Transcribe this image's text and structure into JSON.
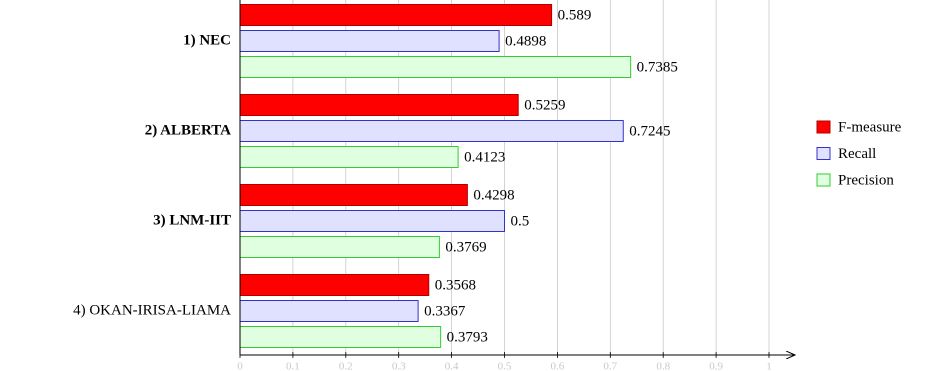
{
  "chart_data": {
    "type": "hbar",
    "categories": [
      "1) NEC",
      "2) ALBERTA",
      "3) LNM-IIT",
      "4) OKAN-IRISA-LIAMA"
    ],
    "category_font_weight": [
      "bold",
      "bold",
      "bold",
      "normal"
    ],
    "series": [
      {
        "name": "F-measure",
        "color": "#ff0000",
        "stroke": "#b00000",
        "values": [
          0.589,
          0.5259,
          0.4298,
          0.3568
        ]
      },
      {
        "name": "Recall",
        "color": "#e0e0ff",
        "stroke": "#3333cc",
        "values": [
          0.4898,
          0.7245,
          0.5,
          0.3367
        ]
      },
      {
        "name": "Precision",
        "color": "#e0ffe0",
        "stroke": "#33cc33",
        "values": [
          0.7385,
          0.4123,
          0.3769,
          0.3793
        ]
      }
    ],
    "xlim": [
      0,
      1
    ],
    "xticks": [
      0,
      0.1,
      0.2,
      0.3,
      0.4,
      0.5,
      0.6,
      0.7,
      0.8,
      0.9,
      1
    ],
    "grid": true,
    "legend": "right"
  }
}
